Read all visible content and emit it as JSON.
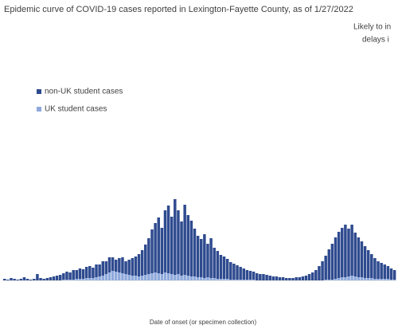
{
  "chart_data": {
    "type": "bar",
    "stacked": true,
    "title": "Epidemic curve of COVID-19 cases reported in Lexington-Fayette County, as of 1/27/2022",
    "annotation": [
      "Likely to in",
      "delays i"
    ],
    "x_label": "Date of onset (or specimen collection)",
    "categories": [
      null,
      null,
      null,
      null,
      null,
      null,
      null,
      null,
      null,
      null,
      null,
      null,
      null,
      null,
      null,
      null,
      null,
      null,
      null,
      null,
      null,
      null,
      null,
      null,
      null,
      null,
      null,
      null,
      null,
      null,
      null,
      null,
      null,
      null,
      null,
      null,
      null,
      null,
      null,
      null,
      null,
      null,
      null,
      null,
      null,
      null,
      null,
      null,
      null,
      null,
      null,
      null,
      null,
      null,
      null,
      null,
      null,
      null,
      null,
      null,
      null,
      null,
      null,
      null,
      null,
      null,
      null,
      null,
      null,
      null,
      null,
      null,
      null,
      null,
      null,
      null,
      null,
      null,
      null,
      null,
      null,
      null,
      null,
      null,
      null,
      null,
      null,
      null,
      null,
      null,
      null,
      null,
      null,
      null,
      null,
      null,
      null,
      null,
      null,
      null,
      null,
      null,
      null,
      null,
      null,
      null,
      null,
      null,
      null,
      null,
      null,
      null,
      null,
      null,
      null,
      null,
      null,
      null,
      null,
      null
    ],
    "ylim": [
      0,
      110
    ],
    "series": [
      {
        "name": "UK student cases",
        "color": "#8fa9dc",
        "values": [
          0,
          0,
          0,
          0,
          0,
          0,
          0,
          0,
          0,
          0,
          0,
          0,
          0,
          0,
          0,
          0,
          0,
          0,
          1,
          1,
          1,
          1,
          2,
          2,
          2,
          3,
          3,
          3,
          4,
          5,
          6,
          8,
          10,
          12,
          11,
          10,
          9,
          8,
          7,
          6,
          6,
          5,
          6,
          7,
          8,
          9,
          10,
          9,
          8,
          10,
          9,
          8,
          7,
          8,
          6,
          7,
          6,
          5,
          5,
          4,
          4,
          3,
          4,
          3,
          3,
          2,
          2,
          2,
          2,
          1,
          1,
          1,
          1,
          1,
          1,
          1,
          1,
          0,
          0,
          0,
          0,
          0,
          0,
          0,
          0,
          0,
          0,
          0,
          0,
          0,
          0,
          0,
          0,
          0,
          0,
          0,
          0,
          0,
          1,
          1,
          1,
          2,
          3,
          4,
          4,
          5,
          6,
          5,
          4,
          4,
          3,
          3,
          3,
          2,
          2,
          2,
          2,
          2,
          1,
          1
        ]
      },
      {
        "name": "non-UK student cases",
        "color": "#2f4b8f",
        "values": [
          2,
          1,
          3,
          2,
          1,
          2,
          4,
          2,
          1,
          2,
          8,
          3,
          2,
          3,
          4,
          5,
          6,
          7,
          8,
          10,
          9,
          12,
          11,
          13,
          12,
          14,
          15,
          13,
          16,
          15,
          18,
          16,
          19,
          17,
          15,
          18,
          20,
          16,
          19,
          22,
          24,
          28,
          32,
          38,
          45,
          55,
          62,
          70,
          58,
          78,
          85,
          72,
          95,
          80,
          68,
          88,
          76,
          70,
          60,
          52,
          48,
          55,
          42,
          50,
          38,
          35,
          30,
          28,
          25,
          22,
          20,
          18,
          16,
          14,
          12,
          11,
          10,
          9,
          8,
          8,
          7,
          6,
          5,
          5,
          4,
          4,
          3,
          3,
          3,
          4,
          4,
          5,
          6,
          8,
          10,
          13,
          18,
          24,
          30,
          38,
          45,
          52,
          58,
          62,
          66,
          60,
          64,
          55,
          50,
          45,
          40,
          35,
          30,
          26,
          22,
          20,
          18,
          16,
          14,
          12
        ]
      }
    ]
  }
}
